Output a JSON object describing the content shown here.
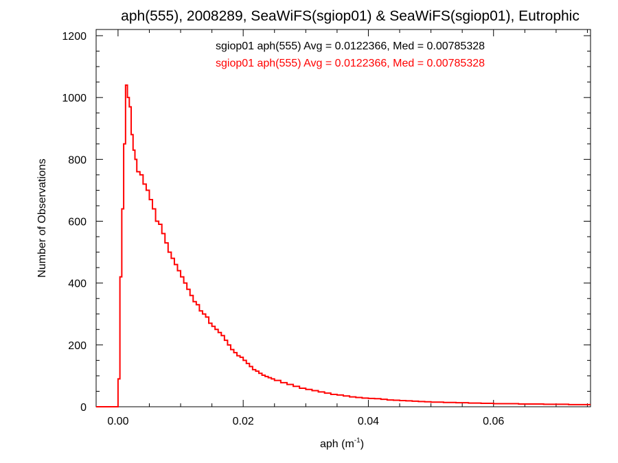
{
  "chart_data": {
    "type": "step",
    "title": "aph(555), 2008289, SeaWiFS(sgiop01) & SeaWiFS(sgiop01), Eutrophic",
    "xlabel": "aph (m",
    "xlabel_sup": "-1",
    "xlabel_close": ")",
    "ylabel": "Number of Observations",
    "xlim": [
      -0.0035,
      0.0755
    ],
    "ylim": [
      0,
      1220
    ],
    "xticks": [
      0.0,
      0.02,
      0.04,
      0.06
    ],
    "xtick_labels": [
      "0.00",
      "0.02",
      "0.04",
      "0.06"
    ],
    "yticks": [
      0,
      200,
      400,
      600,
      800,
      1000,
      1200
    ],
    "ytick_labels": [
      "0",
      "200",
      "400",
      "600",
      "800",
      "1000",
      "1200"
    ],
    "legend": [
      {
        "label": "sgiop01 aph(555) Avg = 0.0122366, Med = 0.00785328",
        "color": "#000000"
      },
      {
        "label": "sgiop01 aph(555) Avg = 0.0122366, Med = 0.00785328",
        "color": "#ff0000"
      }
    ],
    "legend_placement": "top-center",
    "grid": false,
    "series": [
      {
        "color": "#ff0000",
        "x": [
          -0.0035,
          0.0,
          0.0003,
          0.0006,
          0.0009,
          0.0012,
          0.0015,
          0.0018,
          0.0021,
          0.0024,
          0.0027,
          0.003,
          0.0035,
          0.004,
          0.0045,
          0.005,
          0.0055,
          0.006,
          0.0065,
          0.007,
          0.0075,
          0.008,
          0.0085,
          0.009,
          0.0095,
          0.01,
          0.0105,
          0.011,
          0.0115,
          0.012,
          0.0125,
          0.013,
          0.0135,
          0.014,
          0.0145,
          0.015,
          0.0155,
          0.016,
          0.0165,
          0.017,
          0.0175,
          0.018,
          0.0185,
          0.019,
          0.0195,
          0.02,
          0.0205,
          0.021,
          0.0215,
          0.022,
          0.0225,
          0.023,
          0.0235,
          0.024,
          0.0245,
          0.025,
          0.026,
          0.027,
          0.028,
          0.029,
          0.03,
          0.031,
          0.032,
          0.033,
          0.034,
          0.035,
          0.036,
          0.037,
          0.038,
          0.039,
          0.04,
          0.041,
          0.042,
          0.043,
          0.044,
          0.045,
          0.046,
          0.047,
          0.048,
          0.049,
          0.05,
          0.052,
          0.054,
          0.056,
          0.058,
          0.06,
          0.062,
          0.064,
          0.066,
          0.068,
          0.07,
          0.072,
          0.074,
          0.0755
        ],
        "y": [
          0,
          90,
          420,
          640,
          850,
          1040,
          1000,
          970,
          880,
          830,
          800,
          760,
          750,
          720,
          700,
          670,
          640,
          600,
          590,
          560,
          530,
          500,
          480,
          460,
          440,
          420,
          400,
          380,
          360,
          340,
          330,
          310,
          300,
          290,
          270,
          260,
          250,
          240,
          230,
          215,
          200,
          185,
          175,
          165,
          160,
          150,
          140,
          130,
          120,
          115,
          108,
          102,
          98,
          94,
          90,
          85,
          78,
          72,
          66,
          60,
          56,
          52,
          48,
          44,
          40,
          38,
          35,
          32,
          30,
          28,
          27,
          26,
          24,
          22,
          21,
          20,
          19,
          18,
          17,
          16,
          15,
          14,
          13,
          12,
          11,
          10,
          10,
          9,
          9,
          8,
          8,
          7,
          7,
          7
        ]
      }
    ]
  }
}
